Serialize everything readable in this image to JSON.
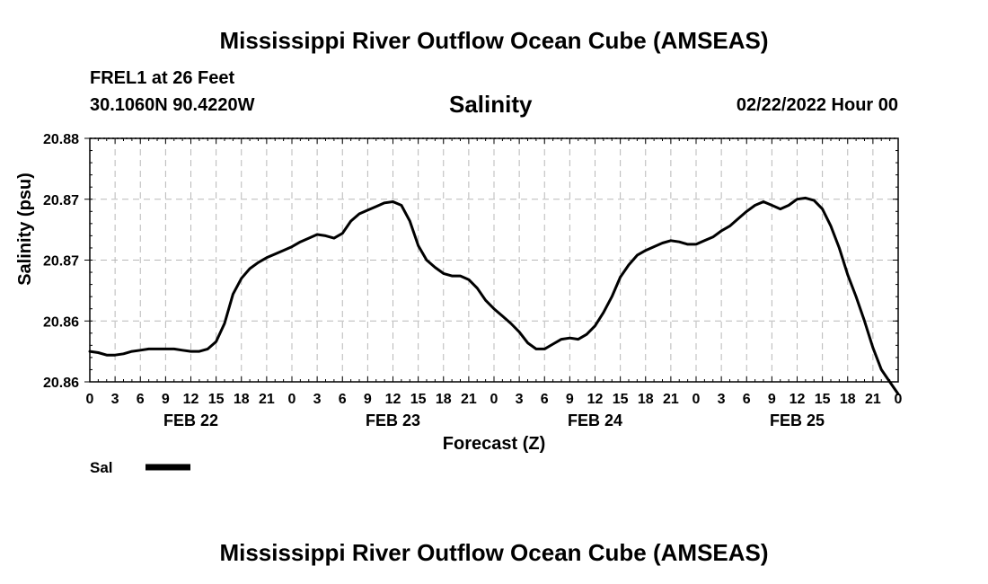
{
  "header": {
    "title": "Mississippi River Outflow Ocean Cube (AMSEAS)",
    "station": "FREL1 at 26 Feet",
    "coords": "30.1060N  90.4220W",
    "variable": "Salinity",
    "datetime": "02/22/2022 Hour 00"
  },
  "footer": {
    "title": "Mississippi River Outflow Ocean Cube (AMSEAS)"
  },
  "legend": {
    "label": "Sal",
    "color": "#000000"
  },
  "chart_data": {
    "type": "line",
    "title": "Salinity",
    "xlabel": "Forecast (Z)",
    "ylabel": "Salinity (psu)",
    "xlim": [
      0,
      96
    ],
    "ylim": [
      20.86,
      20.88
    ],
    "grid": true,
    "x_tick_labels": [
      "0",
      "3",
      "6",
      "9",
      "12",
      "15",
      "18",
      "21",
      "0",
      "3",
      "6",
      "9",
      "12",
      "15",
      "18",
      "21",
      "0",
      "3",
      "6",
      "9",
      "12",
      "15",
      "18",
      "21",
      "0",
      "3",
      "6",
      "9",
      "12",
      "15",
      "18",
      "21",
      "0"
    ],
    "day_labels": [
      {
        "hour": 12,
        "label": "FEB 22"
      },
      {
        "hour": 36,
        "label": "FEB 23"
      },
      {
        "hour": 60,
        "label": "FEB 24"
      },
      {
        "hour": 84,
        "label": "FEB 25"
      }
    ],
    "y_ticks": [
      20.86,
      20.865,
      20.87,
      20.875,
      20.88
    ],
    "y_tick_labels": [
      "20.86",
      "20.86",
      "20.87",
      "20.87",
      "20.88"
    ],
    "series": [
      {
        "name": "Sal",
        "color": "#000000",
        "x": [
          0,
          1,
          2,
          3,
          4,
          5,
          6,
          7,
          8,
          9,
          10,
          11,
          12,
          13,
          14,
          15,
          16,
          17,
          18,
          19,
          20,
          21,
          22,
          23,
          24,
          25,
          26,
          27,
          28,
          29,
          30,
          31,
          32,
          33,
          34,
          35,
          36,
          37,
          38,
          39,
          40,
          41,
          42,
          43,
          44,
          45,
          46,
          47,
          48,
          49,
          50,
          51,
          52,
          53,
          54,
          55,
          56,
          57,
          58,
          59,
          60,
          61,
          62,
          63,
          64,
          65,
          66,
          67,
          68,
          69,
          70,
          71,
          72,
          73,
          74,
          75,
          76,
          77,
          78,
          79,
          80,
          81,
          82,
          83,
          84,
          85,
          86,
          87,
          88,
          89,
          90,
          91,
          92,
          93,
          94,
          95,
          96
        ],
        "y": [
          20.8625,
          20.8624,
          20.8622,
          20.8622,
          20.8623,
          20.8625,
          20.8626,
          20.8627,
          20.8627,
          20.8627,
          20.8627,
          20.8626,
          20.8625,
          20.8625,
          20.8627,
          20.8633,
          20.8648,
          20.8672,
          20.8685,
          20.8693,
          20.8698,
          20.8702,
          20.8705,
          20.8708,
          20.8711,
          20.8715,
          20.8718,
          20.8721,
          20.872,
          20.8718,
          20.8722,
          20.8732,
          20.8738,
          20.8741,
          20.8744,
          20.8747,
          20.8748,
          20.8745,
          20.8732,
          20.8712,
          20.87,
          20.8694,
          20.8689,
          20.8687,
          20.8687,
          20.8684,
          20.8677,
          20.8667,
          20.866,
          20.8654,
          20.8648,
          20.8641,
          20.8632,
          20.8627,
          20.8627,
          20.8631,
          20.8635,
          20.8636,
          20.8635,
          20.8639,
          20.8646,
          20.8657,
          20.867,
          20.8686,
          20.8696,
          20.8704,
          20.8708,
          20.8711,
          20.8714,
          20.8716,
          20.8715,
          20.8713,
          20.8713,
          20.8716,
          20.8719,
          20.8724,
          20.8728,
          20.8734,
          20.874,
          20.8745,
          20.8748,
          20.8745,
          20.8742,
          20.8745,
          20.875,
          20.8751,
          20.8749,
          20.8742,
          20.8728,
          20.871,
          20.8688,
          20.867,
          20.865,
          20.8628,
          20.861,
          20.86,
          20.859
        ]
      }
    ]
  }
}
